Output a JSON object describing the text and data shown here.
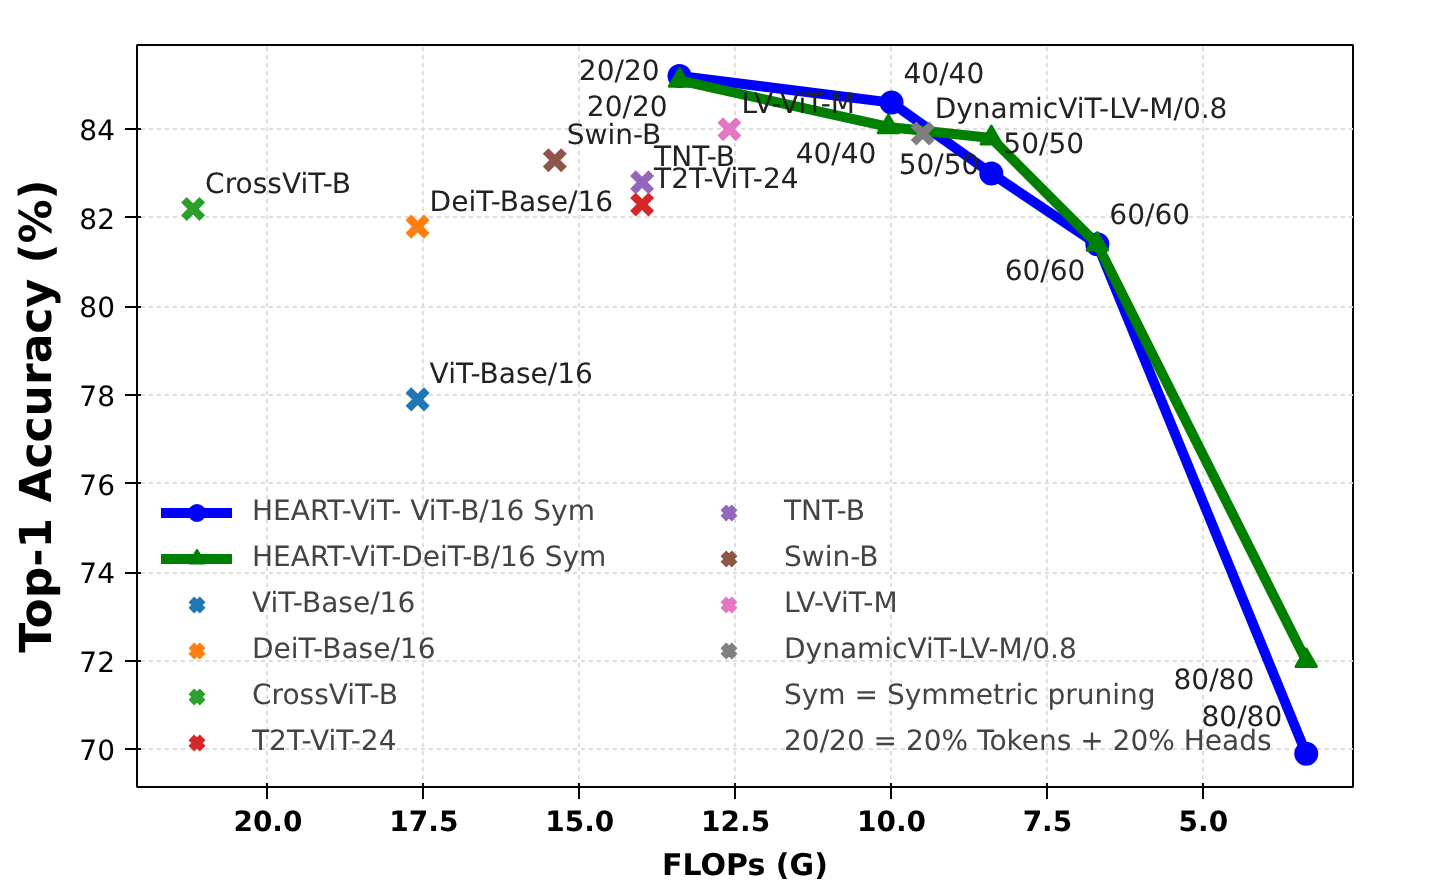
{
  "chart_data": {
    "type": "line",
    "xlabel": "FLOPs (G)",
    "ylabel": "Top-1 Accuracy (%)",
    "xlim": [
      22.1,
      2.6
    ],
    "ylim": [
      69.15,
      85.9
    ],
    "xticks": [
      {
        "value": 20,
        "label": "20.0"
      },
      {
        "value": 17.5,
        "label": "17.5"
      },
      {
        "value": 15,
        "label": "15.0"
      },
      {
        "value": 12.5,
        "label": "12.5"
      },
      {
        "value": 10,
        "label": "10.0"
      },
      {
        "value": 7.5,
        "label": "7.5"
      },
      {
        "value": 5,
        "label": "5.0"
      }
    ],
    "yticks": [
      70,
      72,
      74,
      76,
      78,
      80,
      82,
      84
    ],
    "grid": true,
    "legend": "bottom left",
    "series": [
      {
        "name": "HEART-ViT- ViT-B/16 Sym",
        "marker": "circle",
        "color": "#0000ff",
        "x": [
          13.4,
          10.0,
          8.4,
          6.7,
          3.35
        ],
        "values": [
          85.2,
          84.6,
          83.0,
          81.4,
          69.9
        ],
        "value_labels": [
          "20/20",
          "40/40",
          "50/50",
          "60/60",
          "80/80"
        ]
      },
      {
        "name": "HEART-ViT-DeiT-B/16 Sym",
        "marker": "triangle",
        "color": "#008000",
        "x": [
          13.4,
          10.05,
          8.4,
          6.7,
          3.35
        ],
        "values": [
          85.1,
          84.05,
          83.8,
          81.4,
          72.0
        ],
        "value_labels": [
          "20/20",
          "40/40",
          "50/50",
          "60/60",
          "80/80"
        ]
      },
      {
        "name": "ViT-Base/16",
        "type": "scatter",
        "marker": "cross",
        "color": "#1f77b4",
        "x": [
          17.6
        ],
        "values": [
          77.9
        ]
      },
      {
        "name": "DeiT-Base/16",
        "type": "scatter",
        "marker": "cross",
        "color": "#ff7f0e",
        "x": [
          17.6
        ],
        "values": [
          81.8
        ]
      },
      {
        "name": "CrossViT-B",
        "type": "scatter",
        "marker": "cross",
        "color": "#2ca02c",
        "x": [
          21.2
        ],
        "values": [
          82.2
        ]
      },
      {
        "name": "T2T-ViT-24",
        "type": "scatter",
        "marker": "cross",
        "color": "#d62728",
        "x": [
          14.0
        ],
        "values": [
          82.3
        ]
      },
      {
        "name": "TNT-B",
        "type": "scatter",
        "marker": "cross",
        "color": "#9467bd",
        "x": [
          14.0
        ],
        "values": [
          82.8
        ]
      },
      {
        "name": "Swin-B",
        "type": "scatter",
        "marker": "cross",
        "color": "#8c564b",
        "x": [
          15.4
        ],
        "values": [
          83.3
        ]
      },
      {
        "name": "LV-ViT-M",
        "type": "scatter",
        "marker": "cross",
        "color": "#e377c2",
        "x": [
          12.6
        ],
        "values": [
          84.0
        ]
      },
      {
        "name": "DynamicViT-LV-M/0.8",
        "type": "scatter",
        "marker": "cross",
        "color": "#7f7f7f",
        "x": [
          9.5
        ],
        "values": [
          83.9
        ]
      }
    ],
    "annotations": [
      "Sym = Symmetric pruning",
      "20/20 = 20% Tokens + 20% Heads"
    ]
  }
}
